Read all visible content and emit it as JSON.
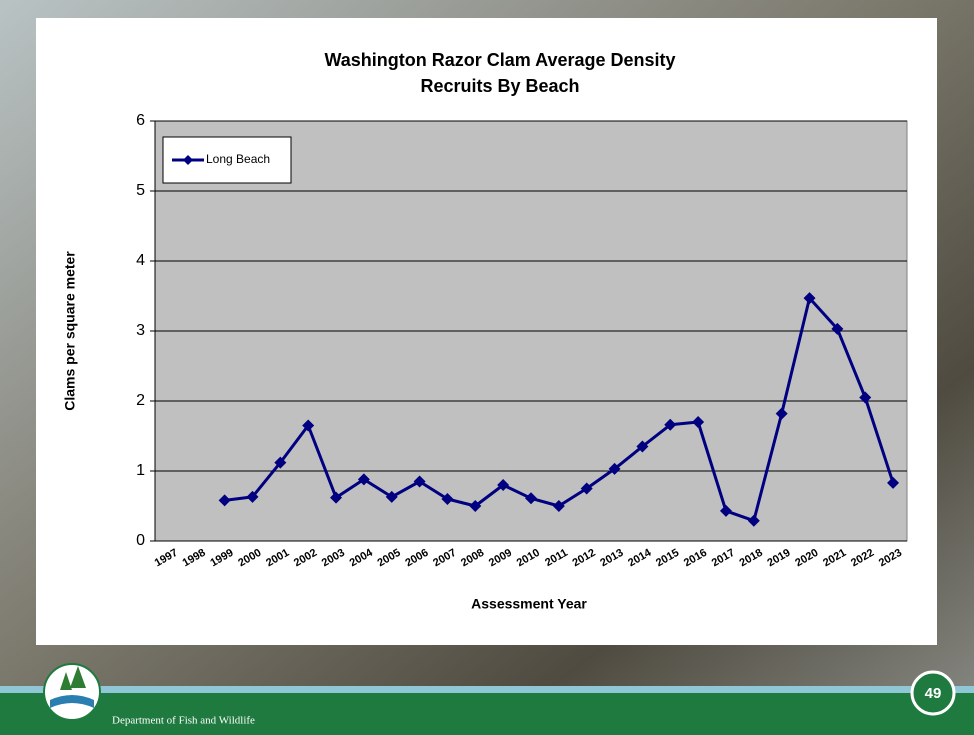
{
  "chart_data": {
    "type": "line",
    "title": "Washington Razor Clam Average Density",
    "subtitle": "Recruits By Beach",
    "x_label": "Assessment Year",
    "y_label": "Clams per square meter",
    "categories": [
      "1997",
      "1998",
      "1999",
      "2000",
      "2001",
      "2002",
      "2003",
      "2004",
      "2005",
      "2006",
      "2007",
      "2008",
      "2009",
      "2010",
      "2011",
      "2012",
      "2013",
      "2014",
      "2015",
      "2016",
      "2017",
      "2018",
      "2019",
      "2020",
      "2021",
      "2022",
      "2023"
    ],
    "series": [
      {
        "name": "Long Beach",
        "color": "#000080",
        "values": [
          null,
          null,
          0.58,
          0.63,
          1.12,
          1.65,
          0.62,
          0.88,
          0.63,
          0.85,
          0.6,
          0.5,
          0.8,
          0.61,
          0.5,
          0.75,
          1.03,
          1.35,
          1.66,
          1.7,
          0.43,
          0.29,
          1.82,
          3.47,
          3.03,
          2.05,
          0.83
        ]
      }
    ],
    "ylim": [
      0,
      6
    ],
    "yticks": [
      0,
      1,
      2,
      3,
      4,
      5,
      6
    ],
    "grid": true,
    "legend": "top-left"
  },
  "footer": {
    "organization": "Department of Fish and Wildlife",
    "page_number": 49
  }
}
